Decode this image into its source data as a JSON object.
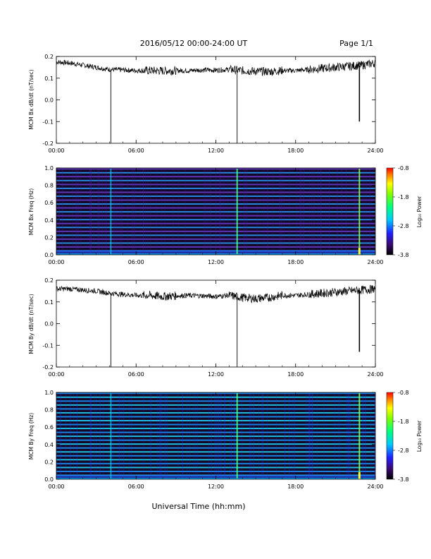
{
  "header": {
    "title": "2016/05/12  00:00-24:00 UT",
    "page": "Page 1/1"
  },
  "footer": {
    "xlabel": "Universal Time (hh:mm)"
  },
  "chart_data": [
    {
      "type": "line",
      "ylabel": "MCM Bx dB/dt (nT/sec)",
      "xlim": [
        0,
        24
      ],
      "ylim": [
        -0.2,
        0.2
      ],
      "x_ticks": [
        "00:00",
        "06:00",
        "12:00",
        "18:00",
        "24:00"
      ],
      "y_ticks": [
        "-0.2",
        "-0.1",
        "0.0",
        "0.1",
        "0.2"
      ],
      "series": [
        {
          "x": [
            0,
            1,
            2,
            3,
            4,
            5,
            6,
            7,
            8,
            9,
            10,
            11,
            12,
            13,
            14,
            15,
            16,
            17,
            18,
            19,
            20,
            21,
            22,
            23,
            24
          ],
          "values": [
            0.175,
            0.17,
            0.16,
            0.15,
            0.14,
            0.138,
            0.135,
            0.135,
            0.134,
            0.135,
            0.135,
            0.138,
            0.137,
            0.14,
            0.135,
            0.132,
            0.13,
            0.135,
            0.135,
            0.14,
            0.145,
            0.15,
            0.155,
            0.16,
            0.17
          ]
        }
      ],
      "spikes": [
        {
          "x": 4.1,
          "y": -0.2
        },
        {
          "x": 13.6,
          "y": -0.2
        },
        {
          "x": 22.8,
          "y": -0.1
        }
      ]
    },
    {
      "type": "heatmap",
      "ylabel": "MCM Bx Freq (Hz)",
      "xlim": [
        0,
        24
      ],
      "ylim": [
        0,
        1.0
      ],
      "x_ticks": [
        "00:00",
        "06:00",
        "12:00",
        "18:00",
        "24:00"
      ],
      "y_ticks": [
        "0.0",
        "0.2",
        "0.4",
        "0.6",
        "0.8",
        "1.0"
      ],
      "colorbar": {
        "label": "Log₁₀ Power",
        "ticks": [
          "-0.8",
          "-1.8",
          "-2.8",
          "-3.8"
        ],
        "range": [
          -3.8,
          -0.8
        ]
      },
      "line_frequencies": [
        0.045,
        0.09,
        0.135,
        0.18,
        0.225,
        0.27,
        0.315,
        0.36,
        0.405,
        0.45,
        0.495,
        0.54,
        0.585,
        0.63,
        0.675,
        0.72,
        0.765,
        0.81,
        0.855,
        0.9,
        0.945,
        0.99
      ],
      "spike_times": [
        4.1,
        13.6,
        22.8
      ]
    },
    {
      "type": "line",
      "ylabel": "MCM By dB/dt (nT/sec)",
      "xlim": [
        0,
        24
      ],
      "ylim": [
        -0.2,
        0.2
      ],
      "x_ticks": [
        "00:00",
        "06:00",
        "12:00",
        "18:00",
        "24:00"
      ],
      "y_ticks": [
        "-0.2",
        "-0.1",
        "0.0",
        "0.1",
        "0.2"
      ],
      "series": [
        {
          "x": [
            0,
            1,
            2,
            3,
            4,
            5,
            6,
            7,
            8,
            9,
            10,
            11,
            12,
            13,
            14,
            15,
            16,
            17,
            18,
            19,
            20,
            21,
            22,
            23,
            24
          ],
          "values": [
            0.16,
            0.16,
            0.155,
            0.15,
            0.14,
            0.135,
            0.13,
            0.13,
            0.125,
            0.128,
            0.13,
            0.128,
            0.125,
            0.13,
            0.12,
            0.115,
            0.12,
            0.13,
            0.13,
            0.135,
            0.14,
            0.145,
            0.15,
            0.155,
            0.16
          ]
        }
      ],
      "spikes": [
        {
          "x": 4.1,
          "y": -0.2
        },
        {
          "x": 13.6,
          "y": -0.2
        },
        {
          "x": 22.8,
          "y": -0.13
        }
      ]
    },
    {
      "type": "heatmap",
      "ylabel": "MCM By Freq (Hz)",
      "xlim": [
        0,
        24
      ],
      "ylim": [
        0,
        1.0
      ],
      "x_ticks": [
        "00:00",
        "06:00",
        "12:00",
        "18:00",
        "24:00"
      ],
      "y_ticks": [
        "0.0",
        "0.2",
        "0.4",
        "0.6",
        "0.8",
        "1.0"
      ],
      "colorbar": {
        "label": "Log₁₀ Power",
        "ticks": [
          "-0.8",
          "-1.8",
          "-2.8",
          "-3.8"
        ],
        "range": [
          -3.8,
          -0.8
        ]
      },
      "line_frequencies": [
        0.045,
        0.09,
        0.135,
        0.18,
        0.225,
        0.27,
        0.315,
        0.36,
        0.405,
        0.45,
        0.495,
        0.54,
        0.585,
        0.63,
        0.675,
        0.72,
        0.765,
        0.81,
        0.855,
        0.9,
        0.945,
        0.99
      ],
      "spike_times": [
        4.1,
        13.6,
        22.8
      ]
    }
  ]
}
